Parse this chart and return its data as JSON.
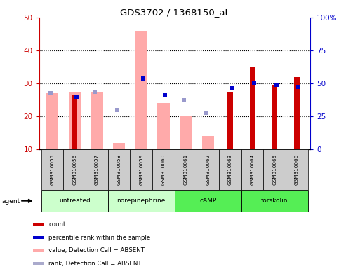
{
  "title": "GDS3702 / 1368150_at",
  "samples": [
    "GSM310055",
    "GSM310056",
    "GSM310057",
    "GSM310058",
    "GSM310059",
    "GSM310060",
    "GSM310061",
    "GSM310062",
    "GSM310063",
    "GSM310064",
    "GSM310065",
    "GSM310066"
  ],
  "red_bars": [
    null,
    26.5,
    null,
    null,
    null,
    null,
    null,
    null,
    27.5,
    35.0,
    29.5,
    32.0
  ],
  "pink_bars": [
    27.0,
    27.5,
    27.5,
    12.0,
    46.0,
    24.0,
    20.0,
    14.0,
    null,
    null,
    null,
    null
  ],
  "blue_squares": [
    null,
    26.0,
    null,
    null,
    31.5,
    26.5,
    null,
    null,
    28.5,
    30.0,
    29.5,
    29.0
  ],
  "lavender_squares": [
    27.0,
    null,
    27.5,
    22.0,
    null,
    null,
    25.0,
    21.0,
    null,
    null,
    null,
    null
  ],
  "ylim_left": [
    10,
    50
  ],
  "yticks_left": [
    10,
    20,
    30,
    40,
    50
  ],
  "ytick_labels_left": [
    "10",
    "20",
    "30",
    "40",
    "50"
  ],
  "ytick_labels_right": [
    "0",
    "25",
    "50",
    "75",
    "100%"
  ],
  "left_axis_color": "#cc0000",
  "right_axis_color": "#0000cc",
  "groups_def": [
    {
      "label": "untreated",
      "start": 0,
      "end": 2,
      "color": "#ccffcc"
    },
    {
      "label": "norepinephrine",
      "start": 3,
      "end": 5,
      "color": "#ccffcc"
    },
    {
      "label": "cAMP",
      "start": 6,
      "end": 8,
      "color": "#55ee55"
    },
    {
      "label": "forskolin",
      "start": 9,
      "end": 11,
      "color": "#55ee55"
    }
  ],
  "legend_colors": [
    "#cc0000",
    "#0000cc",
    "#ffaaaa",
    "#aaaacc"
  ],
  "legend_labels": [
    "count",
    "percentile rank within the sample",
    "value, Detection Call = ABSENT",
    "rank, Detection Call = ABSENT"
  ]
}
